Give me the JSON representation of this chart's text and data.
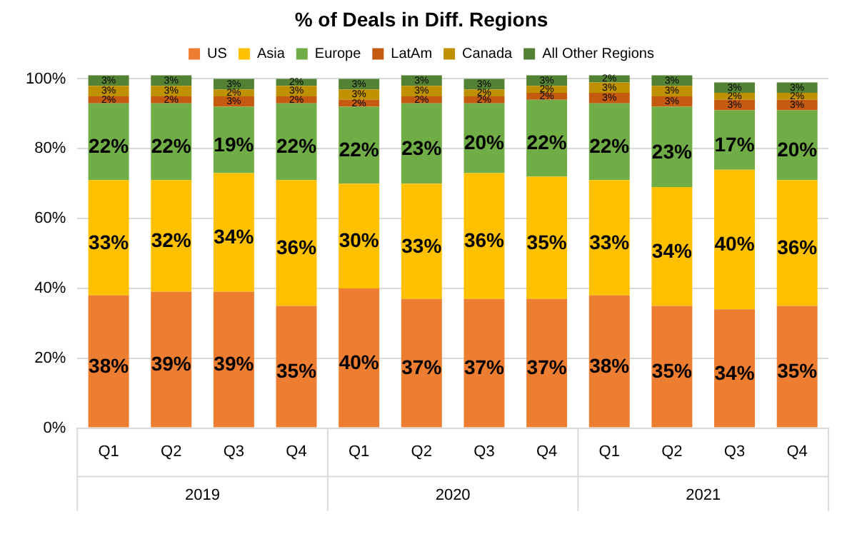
{
  "chart_data": {
    "type": "bar",
    "title": "% of Deals in Diff. Regions",
    "stacked": true,
    "categories": [
      "Q1",
      "Q2",
      "Q3",
      "Q4",
      "Q1",
      "Q2",
      "Q3",
      "Q4",
      "Q1",
      "Q2",
      "Q3",
      "Q4"
    ],
    "annotations": [
      "2019",
      "2020",
      "2021"
    ],
    "series": [
      {
        "name": "US",
        "color": "#ed7d31",
        "values": [
          38,
          39,
          39,
          35,
          40,
          37,
          37,
          37,
          38,
          35,
          34,
          35
        ],
        "value_labels": [
          "38%",
          "39%",
          "39%",
          "35%",
          "40%",
          "37%",
          "37%",
          "37%",
          "38%",
          "35%",
          "34%",
          "35%"
        ]
      },
      {
        "name": "Asia",
        "color": "#ffc000",
        "values": [
          33,
          32,
          34,
          36,
          30,
          33,
          36,
          35,
          33,
          34,
          40,
          36
        ],
        "value_labels": [
          "33%",
          "32%",
          "34%",
          "36%",
          "30%",
          "33%",
          "36%",
          "35%",
          "33%",
          "34%",
          "40%",
          "36%"
        ]
      },
      {
        "name": "Europe",
        "color": "#70ad47",
        "values": [
          22,
          22,
          19,
          22,
          22,
          23,
          20,
          22,
          22,
          23,
          17,
          20
        ],
        "value_labels": [
          "22%",
          "22%",
          "19%",
          "22%",
          "22%",
          "23%",
          "20%",
          "22%",
          "22%",
          "23%",
          "17%",
          "20%"
        ]
      },
      {
        "name": "LatAm",
        "color": "#c55a11",
        "values": [
          2,
          2,
          3,
          2,
          2,
          2,
          2,
          2,
          3,
          3,
          3,
          3
        ],
        "value_labels": [
          "2%",
          "2%",
          "3%",
          "2%",
          "2%",
          "2%",
          "2%",
          "2%",
          "3%",
          "3%",
          "3%",
          "3%"
        ]
      },
      {
        "name": "Canada",
        "color": "#bf9000",
        "values": [
          3,
          3,
          2,
          3,
          3,
          3,
          2,
          2,
          3,
          3,
          2,
          2
        ],
        "value_labels": [
          "3%",
          "3%",
          "2%",
          "3%",
          "3%",
          "3%",
          "2%",
          "2%",
          "3%",
          "3%",
          "2%",
          "2%"
        ]
      },
      {
        "name": "All Other Regions",
        "color": "#548235",
        "values": [
          3,
          3,
          3,
          2,
          3,
          3,
          3,
          3,
          2,
          3,
          3,
          3
        ],
        "value_labels": [
          "3%",
          "3%",
          "3%",
          "2%",
          "3%",
          "3%",
          "3%",
          "3%",
          "2%",
          "3%",
          "3%",
          "3%"
        ]
      }
    ],
    "ylim": [
      0,
      101
    ],
    "yticks": [
      {
        "value": 0,
        "label": "0%"
      },
      {
        "value": 20,
        "label": "20%"
      },
      {
        "value": 40,
        "label": "40%"
      },
      {
        "value": 60,
        "label": "60%"
      },
      {
        "value": 80,
        "label": "80%"
      },
      {
        "value": 100,
        "label": "100%"
      }
    ],
    "grid": "y",
    "legend": "top"
  }
}
